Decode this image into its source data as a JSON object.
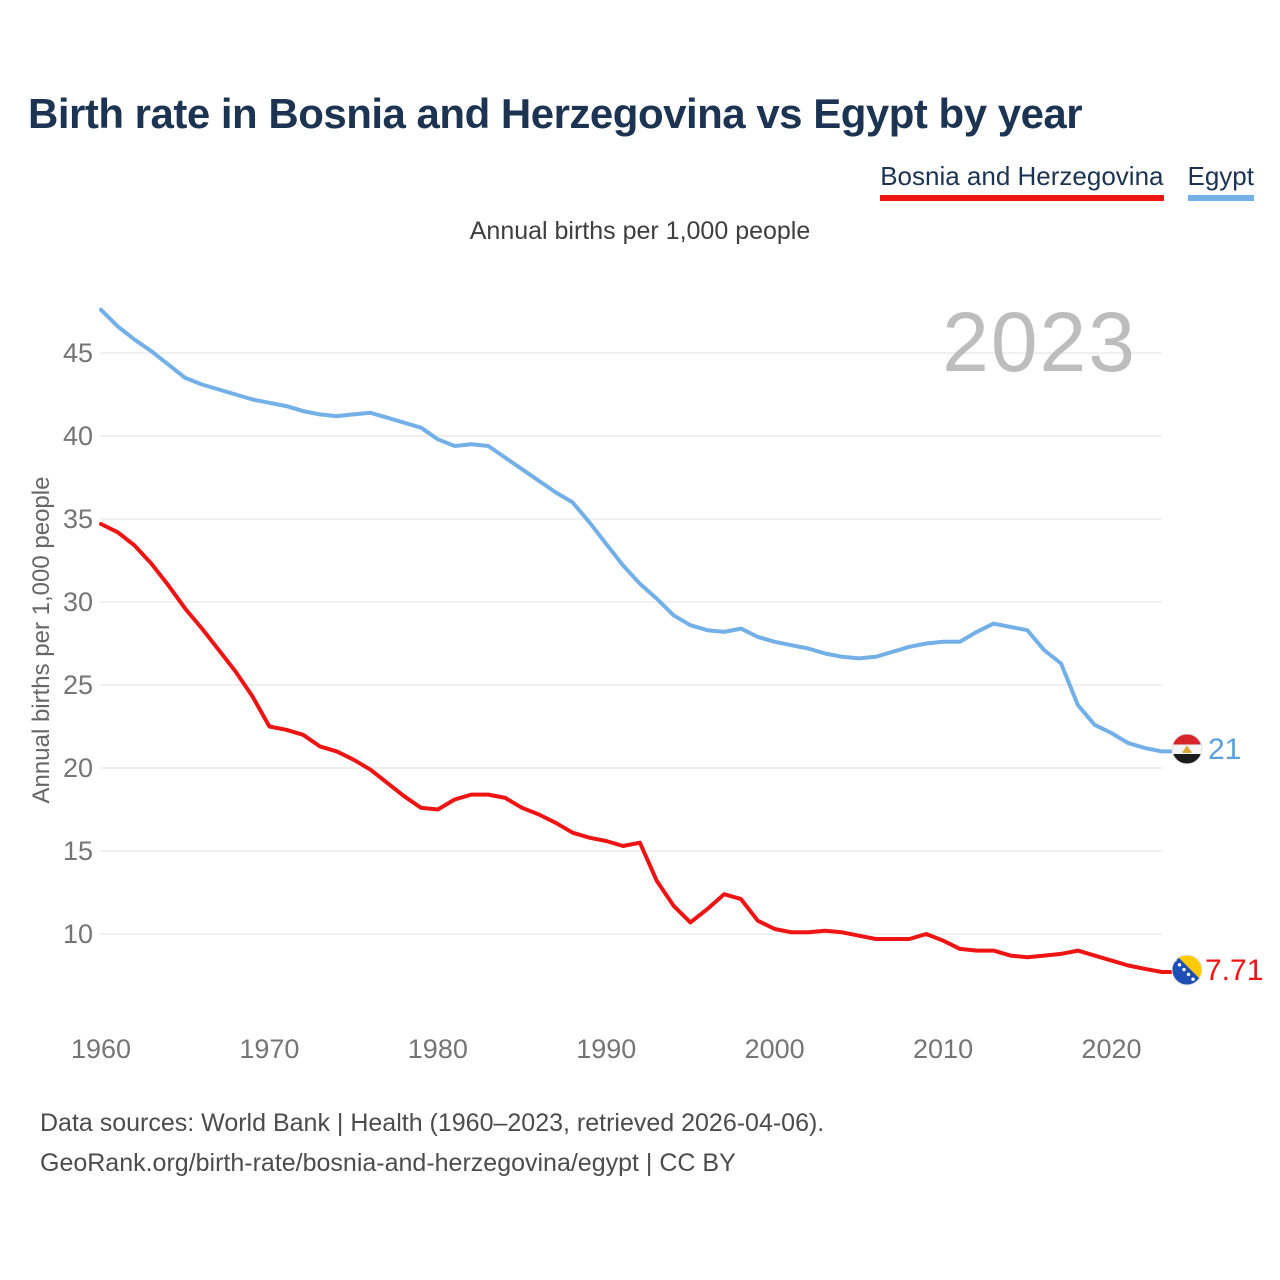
{
  "title": "Birth rate in Bosnia and Herzegovina vs Egypt by year",
  "subtitle": "Annual births per 1,000 people",
  "watermark": "2023",
  "y_axis_title": "Annual births per 1,000 people",
  "legend": {
    "items": [
      {
        "label": "Bosnia and Herzegovina",
        "color": "#ee1414"
      },
      {
        "label": "Egypt",
        "color": "#74b0e8"
      }
    ]
  },
  "footer": {
    "line1": "Data sources: World Bank | Health (1960–2023, retrieved 2026-04-06).",
    "line2": "GeoRank.org/birth-rate/bosnia-and-herzegovina/egypt | CC BY"
  },
  "colors": {
    "bosnia_line": "#ee1414",
    "egypt_line": "#74b0e8",
    "title_navy": "#1c3452",
    "gridline": "#ebebeb",
    "tick_gray": "#757575",
    "watermark_gray": "#bdbdbd"
  },
  "chart_data": {
    "type": "line",
    "title": "Birth rate in Bosnia and Herzegovina vs Egypt by year",
    "subtitle": "Annual births per 1,000 people",
    "ylabel": "Annual births per 1,000 people",
    "xlabel": "",
    "grid": "horizontal",
    "legend_position": "top-right",
    "xlim": [
      1960,
      2023
    ],
    "ylim": [
      7,
      48.5
    ],
    "xticks": [
      1960,
      1970,
      1980,
      1990,
      2000,
      2010,
      2020
    ],
    "yticks": [
      10,
      15,
      20,
      25,
      30,
      35,
      40,
      45
    ],
    "x": [
      1960,
      1961,
      1962,
      1963,
      1964,
      1965,
      1966,
      1967,
      1968,
      1969,
      1970,
      1971,
      1972,
      1973,
      1974,
      1975,
      1976,
      1977,
      1978,
      1979,
      1980,
      1981,
      1982,
      1983,
      1984,
      1985,
      1986,
      1987,
      1988,
      1989,
      1990,
      1991,
      1992,
      1993,
      1994,
      1995,
      1996,
      1997,
      1998,
      1999,
      2000,
      2001,
      2002,
      2003,
      2004,
      2005,
      2006,
      2007,
      2008,
      2009,
      2010,
      2011,
      2012,
      2013,
      2014,
      2015,
      2016,
      2017,
      2018,
      2019,
      2020,
      2021,
      2022,
      2023
    ],
    "series": [
      {
        "name": "Bosnia and Herzegovina",
        "color": "#ee1414",
        "end_label": "7.71",
        "flag": "bosnia",
        "values": [
          34.7,
          34.2,
          33.4,
          32.3,
          31.0,
          29.6,
          28.4,
          27.1,
          25.8,
          24.3,
          22.5,
          22.3,
          22.0,
          21.3,
          21.0,
          20.5,
          19.9,
          19.1,
          18.3,
          17.6,
          17.5,
          18.1,
          18.4,
          18.4,
          18.2,
          17.6,
          17.2,
          16.7,
          16.1,
          15.8,
          15.6,
          15.3,
          15.5,
          13.2,
          11.7,
          10.7,
          11.5,
          12.4,
          12.1,
          10.8,
          10.3,
          10.1,
          10.1,
          10.2,
          10.1,
          9.9,
          9.7,
          9.7,
          9.7,
          10.0,
          9.6,
          9.1,
          9.0,
          9.0,
          8.7,
          8.6,
          8.7,
          8.8,
          9.0,
          8.7,
          8.4,
          8.1,
          7.9,
          7.71
        ]
      },
      {
        "name": "Egypt",
        "color": "#74b0e8",
        "end_label": "21",
        "flag": "egypt",
        "values": [
          47.6,
          46.6,
          45.8,
          45.1,
          44.3,
          43.5,
          43.1,
          42.8,
          42.5,
          42.2,
          42.0,
          41.8,
          41.5,
          41.3,
          41.2,
          41.3,
          41.4,
          41.1,
          40.8,
          40.5,
          39.8,
          39.4,
          39.5,
          39.4,
          38.7,
          38.0,
          37.3,
          36.6,
          36.0,
          34.8,
          33.5,
          32.2,
          31.1,
          30.2,
          29.2,
          28.6,
          28.3,
          28.2,
          28.4,
          27.9,
          27.6,
          27.4,
          27.2,
          26.9,
          26.7,
          26.6,
          26.7,
          27.0,
          27.3,
          27.5,
          27.6,
          27.6,
          28.2,
          28.7,
          28.5,
          28.3,
          27.1,
          26.3,
          23.8,
          22.6,
          22.1,
          21.5,
          21.2,
          21.0
        ]
      }
    ]
  }
}
